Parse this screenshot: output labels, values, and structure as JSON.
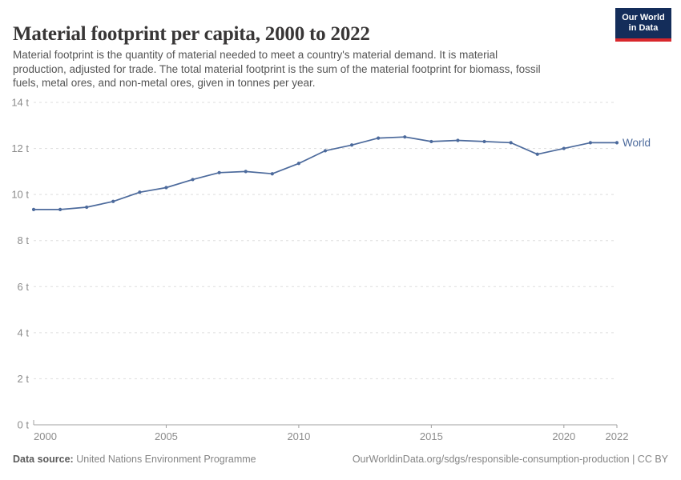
{
  "header": {
    "title": "Material footprint per capita, 2000 to 2022",
    "logo": {
      "line1": "Our World",
      "line2": "in Data"
    },
    "subtitle_lines": [
      "Material footprint is the quantity of material needed to meet a country's material demand. It is material",
      "production, adjusted for trade. The total material footprint is the sum of the material footprint for biomass, fossil",
      "fuels, metal ores, and non-metal ores, given in tonnes per year."
    ]
  },
  "footer": {
    "datasource_label": "Data source:",
    "datasource_value": "United Nations Environment Programme",
    "url_text": "OurWorldinData.org/sdgs/responsible-consumption-production | CC BY"
  },
  "colors": {
    "line": "#4C6A9C",
    "grid": "#dddddd",
    "axis": "#a0a0a0",
    "tick_label": "#8c8c8c",
    "logo_bg": "#142d5a",
    "logo_red": "#d8272c"
  },
  "chart_data": {
    "type": "line",
    "title": "Material footprint per capita, 2000 to 2022",
    "xlabel": "",
    "ylabel": "tonnes per year",
    "unit": "t",
    "grid": "horizontal-dashed",
    "legend_position": "end-of-line",
    "ylim": [
      0,
      14
    ],
    "yticks": [
      0,
      2,
      4,
      6,
      8,
      10,
      12,
      14
    ],
    "ytick_labels": [
      "0 t",
      "2 t",
      "4 t",
      "6 t",
      "8 t",
      "10 t",
      "12 t",
      "14 t"
    ],
    "xticks": [
      2000,
      2005,
      2010,
      2015,
      2020,
      2022
    ],
    "xtick_labels": [
      "2000",
      "2005",
      "2010",
      "2015",
      "2020",
      "2022"
    ],
    "x": [
      2000,
      2001,
      2002,
      2003,
      2004,
      2005,
      2006,
      2007,
      2008,
      2009,
      2010,
      2011,
      2012,
      2013,
      2014,
      2015,
      2016,
      2017,
      2018,
      2019,
      2020,
      2021,
      2022
    ],
    "series": [
      {
        "name": "World",
        "color": "#4C6A9C",
        "values": [
          9.35,
          9.35,
          9.45,
          9.7,
          10.1,
          10.3,
          10.65,
          10.95,
          11.0,
          10.9,
          11.35,
          11.9,
          12.15,
          12.45,
          12.5,
          12.3,
          12.35,
          12.3,
          12.25,
          11.75,
          12.0,
          12.25,
          12.25
        ]
      }
    ]
  }
}
